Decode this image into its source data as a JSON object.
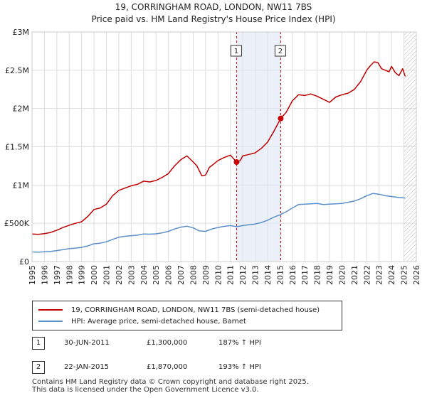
{
  "title_line1": "19, CORRINGHAM ROAD, LONDON, NW11 7BS",
  "title_line2": "Price paid vs. HM Land Registry's House Price Index (HPI)",
  "colors": {
    "property": "#c00000",
    "hpi": "#5b8fc9",
    "grid": "#dddddd",
    "highlight": "#dde6f5",
    "marker": "#cc0000"
  },
  "legend": {
    "property": "19, CORRINGHAM ROAD, LONDON, NW11 7BS (semi-detached house)",
    "hpi": "HPI: Average price, semi-detached house, Barnet"
  },
  "sales": [
    {
      "num": "1",
      "date": "30-JUN-2011",
      "price": "£1,300,000",
      "hpi_change": "187% ↑ HPI"
    },
    {
      "num": "2",
      "date": "22-JAN-2015",
      "price": "£1,870,000",
      "hpi_change": "193% ↑ HPI"
    }
  ],
  "footer_line1": "Contains HM Land Registry data © Crown copyright and database right 2025.",
  "footer_line2": "This data is licensed under the Open Government Licence v3.0.",
  "chart_data": {
    "type": "line",
    "title": "19, CORRINGHAM ROAD, LONDON, NW11 7BS — Price paid vs. HM Land Registry's House Price Index (HPI)",
    "xlabel": "",
    "ylabel": "",
    "xlim": [
      1995,
      2026
    ],
    "ylim": [
      0,
      3000000
    ],
    "x_ticks": [
      "1995",
      "1996",
      "1997",
      "1998",
      "1999",
      "2000",
      "2001",
      "2002",
      "2003",
      "2004",
      "2005",
      "2006",
      "2007",
      "2008",
      "2009",
      "2010",
      "2011",
      "2012",
      "2013",
      "2014",
      "2015",
      "2016",
      "2017",
      "2018",
      "2019",
      "2020",
      "2021",
      "2022",
      "2023",
      "2024",
      "2025",
      "2026"
    ],
    "y_ticks": [
      {
        "value": 0,
        "label": "£0"
      },
      {
        "value": 500000,
        "label": "£500K"
      },
      {
        "value": 1000000,
        "label": "£1M"
      },
      {
        "value": 1500000,
        "label": "£1.5M"
      },
      {
        "value": 2000000,
        "label": "£2M"
      },
      {
        "value": 2500000,
        "label": "£2.5M"
      },
      {
        "value": 3000000,
        "label": "£3M"
      }
    ],
    "highlight_span": [
      2011.5,
      2015.06
    ],
    "future_hatch_from": 2025.0,
    "series": [
      {
        "name": "19, CORRINGHAM ROAD, LONDON, NW11 7BS (semi-detached house)",
        "x": [
          1995.0,
          1995.5,
          1996.0,
          1996.5,
          1997.0,
          1997.5,
          1998.0,
          1998.5,
          1999.0,
          1999.5,
          2000.0,
          2000.5,
          2001.0,
          2001.5,
          2002.0,
          2002.5,
          2003.0,
          2003.5,
          2004.0,
          2004.5,
          2005.0,
          2005.5,
          2006.0,
          2006.5,
          2007.0,
          2007.5,
          2008.0,
          2008.3,
          2008.7,
          2009.0,
          2009.3,
          2009.7,
          2010.0,
          2010.5,
          2011.0,
          2011.5,
          2011.8,
          2012.0,
          2012.5,
          2013.0,
          2013.5,
          2014.0,
          2014.5,
          2015.06,
          2015.5,
          2016.0,
          2016.5,
          2017.0,
          2017.5,
          2018.0,
          2018.5,
          2019.0,
          2019.5,
          2020.0,
          2020.5,
          2021.0,
          2021.5,
          2022.0,
          2022.3,
          2022.6,
          2022.9,
          2023.2,
          2023.5,
          2023.8,
          2024.0,
          2024.3,
          2024.6,
          2024.9,
          2025.1
        ],
        "values": [
          360000,
          355000,
          365000,
          380000,
          410000,
          445000,
          475000,
          500000,
          520000,
          590000,
          680000,
          700000,
          750000,
          860000,
          930000,
          960000,
          990000,
          1010000,
          1050000,
          1040000,
          1060000,
          1100000,
          1150000,
          1250000,
          1330000,
          1380000,
          1300000,
          1250000,
          1120000,
          1130000,
          1230000,
          1280000,
          1320000,
          1360000,
          1390000,
          1300000,
          1320000,
          1380000,
          1400000,
          1420000,
          1480000,
          1560000,
          1700000,
          1870000,
          1950000,
          2100000,
          2180000,
          2170000,
          2190000,
          2160000,
          2120000,
          2080000,
          2150000,
          2180000,
          2200000,
          2250000,
          2350000,
          2500000,
          2560000,
          2610000,
          2600000,
          2520000,
          2500000,
          2480000,
          2550000,
          2470000,
          2430000,
          2520000,
          2420000
        ]
      },
      {
        "name": "HPI: Average price, semi-detached house, Barnet",
        "x": [
          1995.0,
          1995.5,
          1996.0,
          1996.5,
          1997.0,
          1997.5,
          1998.0,
          1998.5,
          1999.0,
          1999.5,
          2000.0,
          2000.5,
          2001.0,
          2001.5,
          2002.0,
          2002.5,
          2003.0,
          2003.5,
          2004.0,
          2004.5,
          2005.0,
          2005.5,
          2006.0,
          2006.5,
          2007.0,
          2007.5,
          2008.0,
          2008.5,
          2009.0,
          2009.5,
          2010.0,
          2010.5,
          2011.0,
          2011.5,
          2012.0,
          2012.5,
          2013.0,
          2013.5,
          2014.0,
          2014.5,
          2015.0,
          2015.5,
          2016.0,
          2016.5,
          2017.0,
          2017.5,
          2018.0,
          2018.5,
          2019.0,
          2019.5,
          2020.0,
          2020.5,
          2021.0,
          2021.5,
          2022.0,
          2022.5,
          2023.0,
          2023.5,
          2024.0,
          2024.5,
          2025.1
        ],
        "values": [
          125000,
          123000,
          127000,
          133000,
          143000,
          155000,
          168000,
          176000,
          185000,
          205000,
          232000,
          240000,
          258000,
          290000,
          318000,
          330000,
          338000,
          345000,
          360000,
          358000,
          362000,
          375000,
          395000,
          425000,
          450000,
          462000,
          440000,
          400000,
          395000,
          425000,
          445000,
          460000,
          470000,
          455000,
          470000,
          480000,
          490000,
          510000,
          540000,
          580000,
          610000,
          650000,
          700000,
          745000,
          750000,
          755000,
          760000,
          745000,
          750000,
          755000,
          760000,
          775000,
          790000,
          820000,
          860000,
          890000,
          880000,
          860000,
          850000,
          840000,
          830000
        ]
      }
    ],
    "sale_points": [
      {
        "label": "1",
        "x": 2011.5,
        "value": 1300000
      },
      {
        "label": "2",
        "x": 2015.06,
        "value": 1870000
      }
    ]
  }
}
